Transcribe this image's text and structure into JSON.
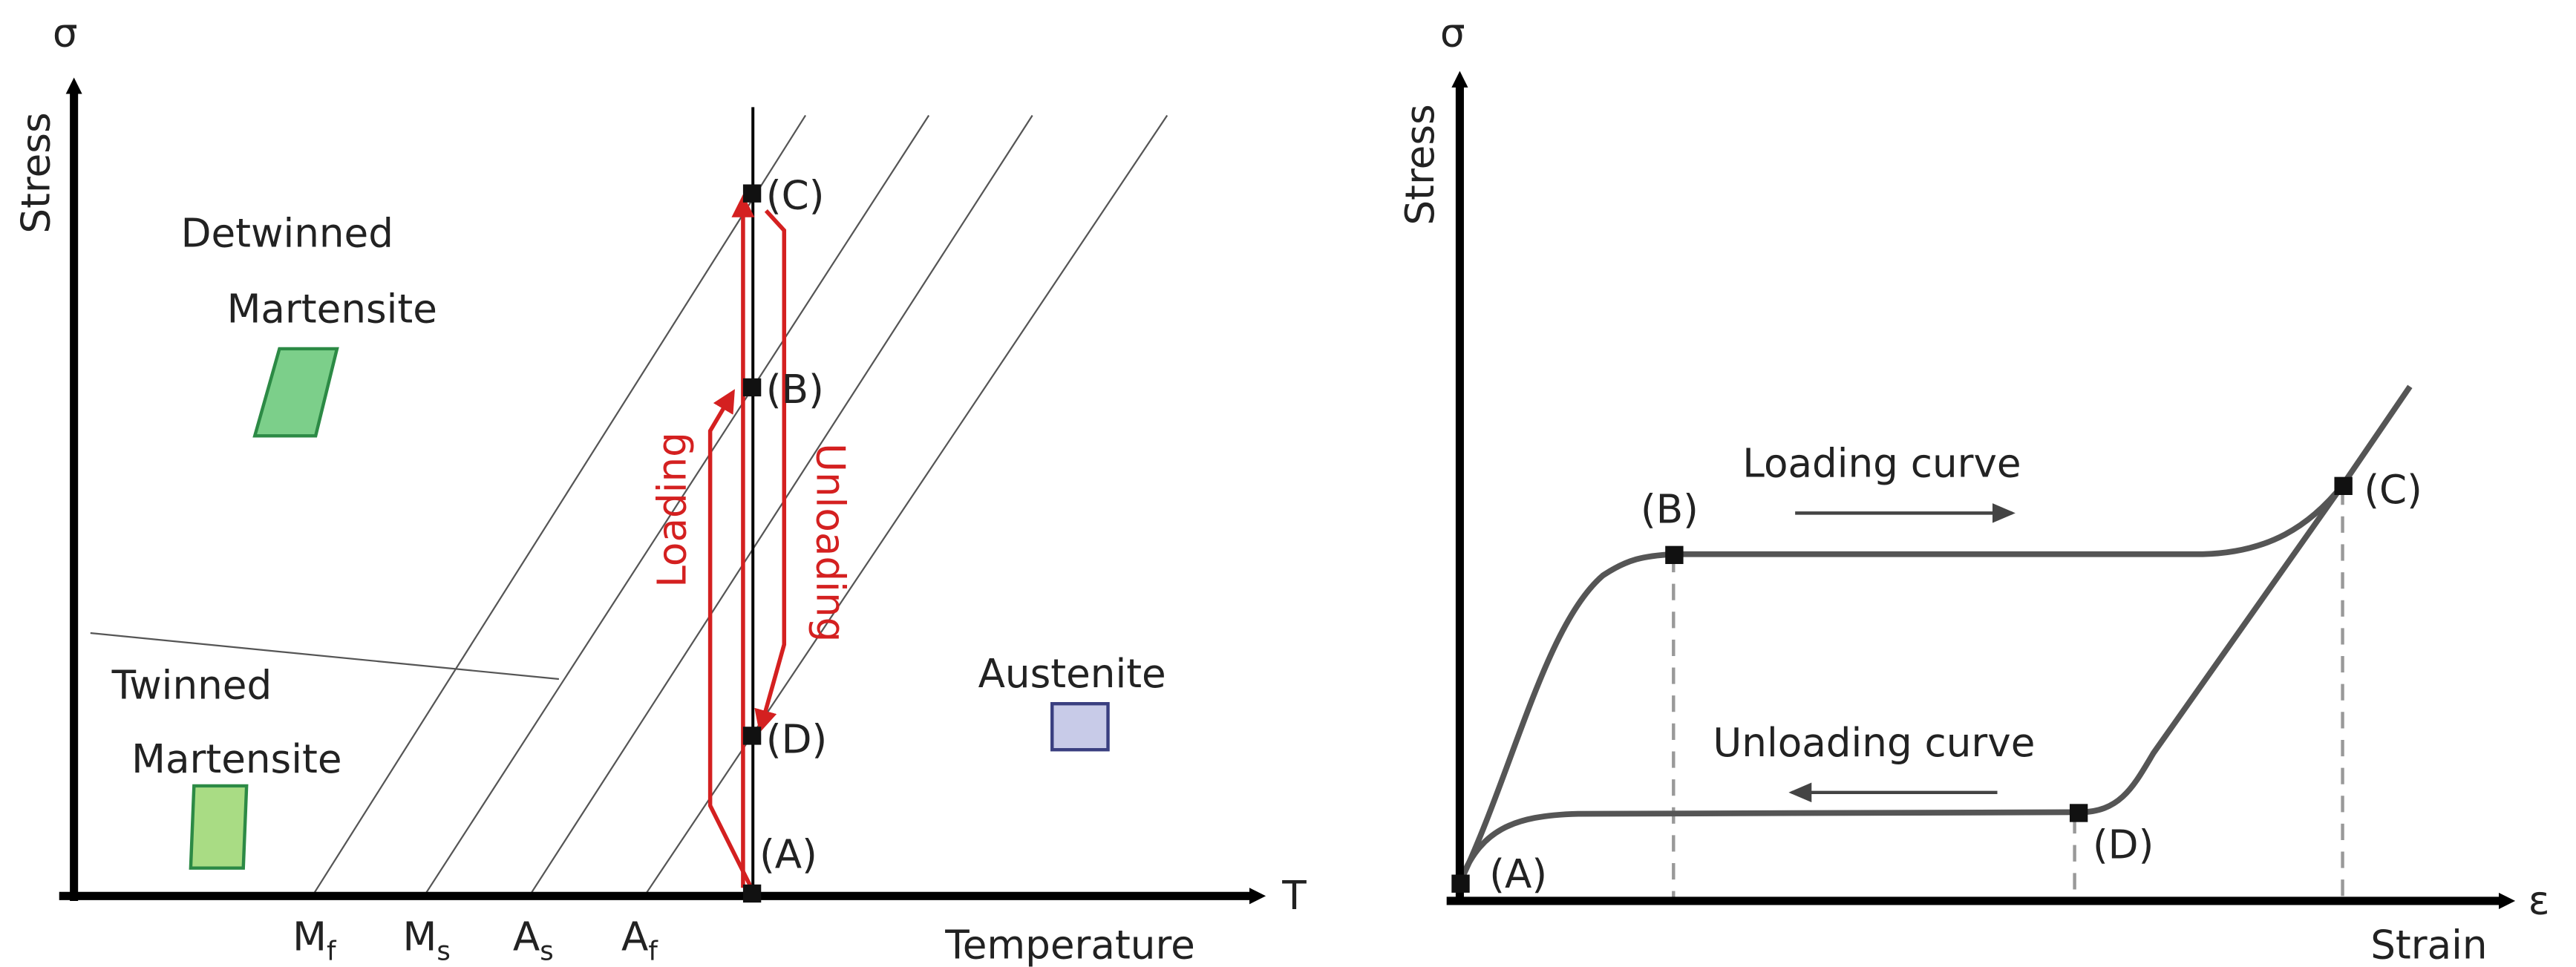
{
  "left_panel": {
    "y_axis": {
      "symbol": "σ",
      "label": "Stress"
    },
    "x_axis": {
      "symbol": "T",
      "label": "Temperature"
    },
    "temperature_marks": [
      {
        "base": "M",
        "sub": "f"
      },
      {
        "base": "M",
        "sub": "s"
      },
      {
        "base": "A",
        "sub": "s"
      },
      {
        "base": "A",
        "sub": "f"
      }
    ],
    "regions": {
      "detwinned": [
        "Detwinned",
        "Martensite"
      ],
      "twinned": [
        "Twinned",
        "Martensite"
      ],
      "austenite": "Austenite"
    },
    "points": [
      "(A)",
      "(B)",
      "(C)",
      "(D)"
    ],
    "path_labels": {
      "loading": "Loading",
      "unloading": "Unloading"
    }
  },
  "right_panel": {
    "y_axis": {
      "symbol": "σ",
      "label": "Stress"
    },
    "x_axis": {
      "symbol": "ε",
      "label": "Strain"
    },
    "curve_labels": {
      "loading": "Loading curve",
      "unloading": "Unloading curve"
    },
    "points": [
      "(A)",
      "(B)",
      "(C)",
      "(D)"
    ]
  }
}
